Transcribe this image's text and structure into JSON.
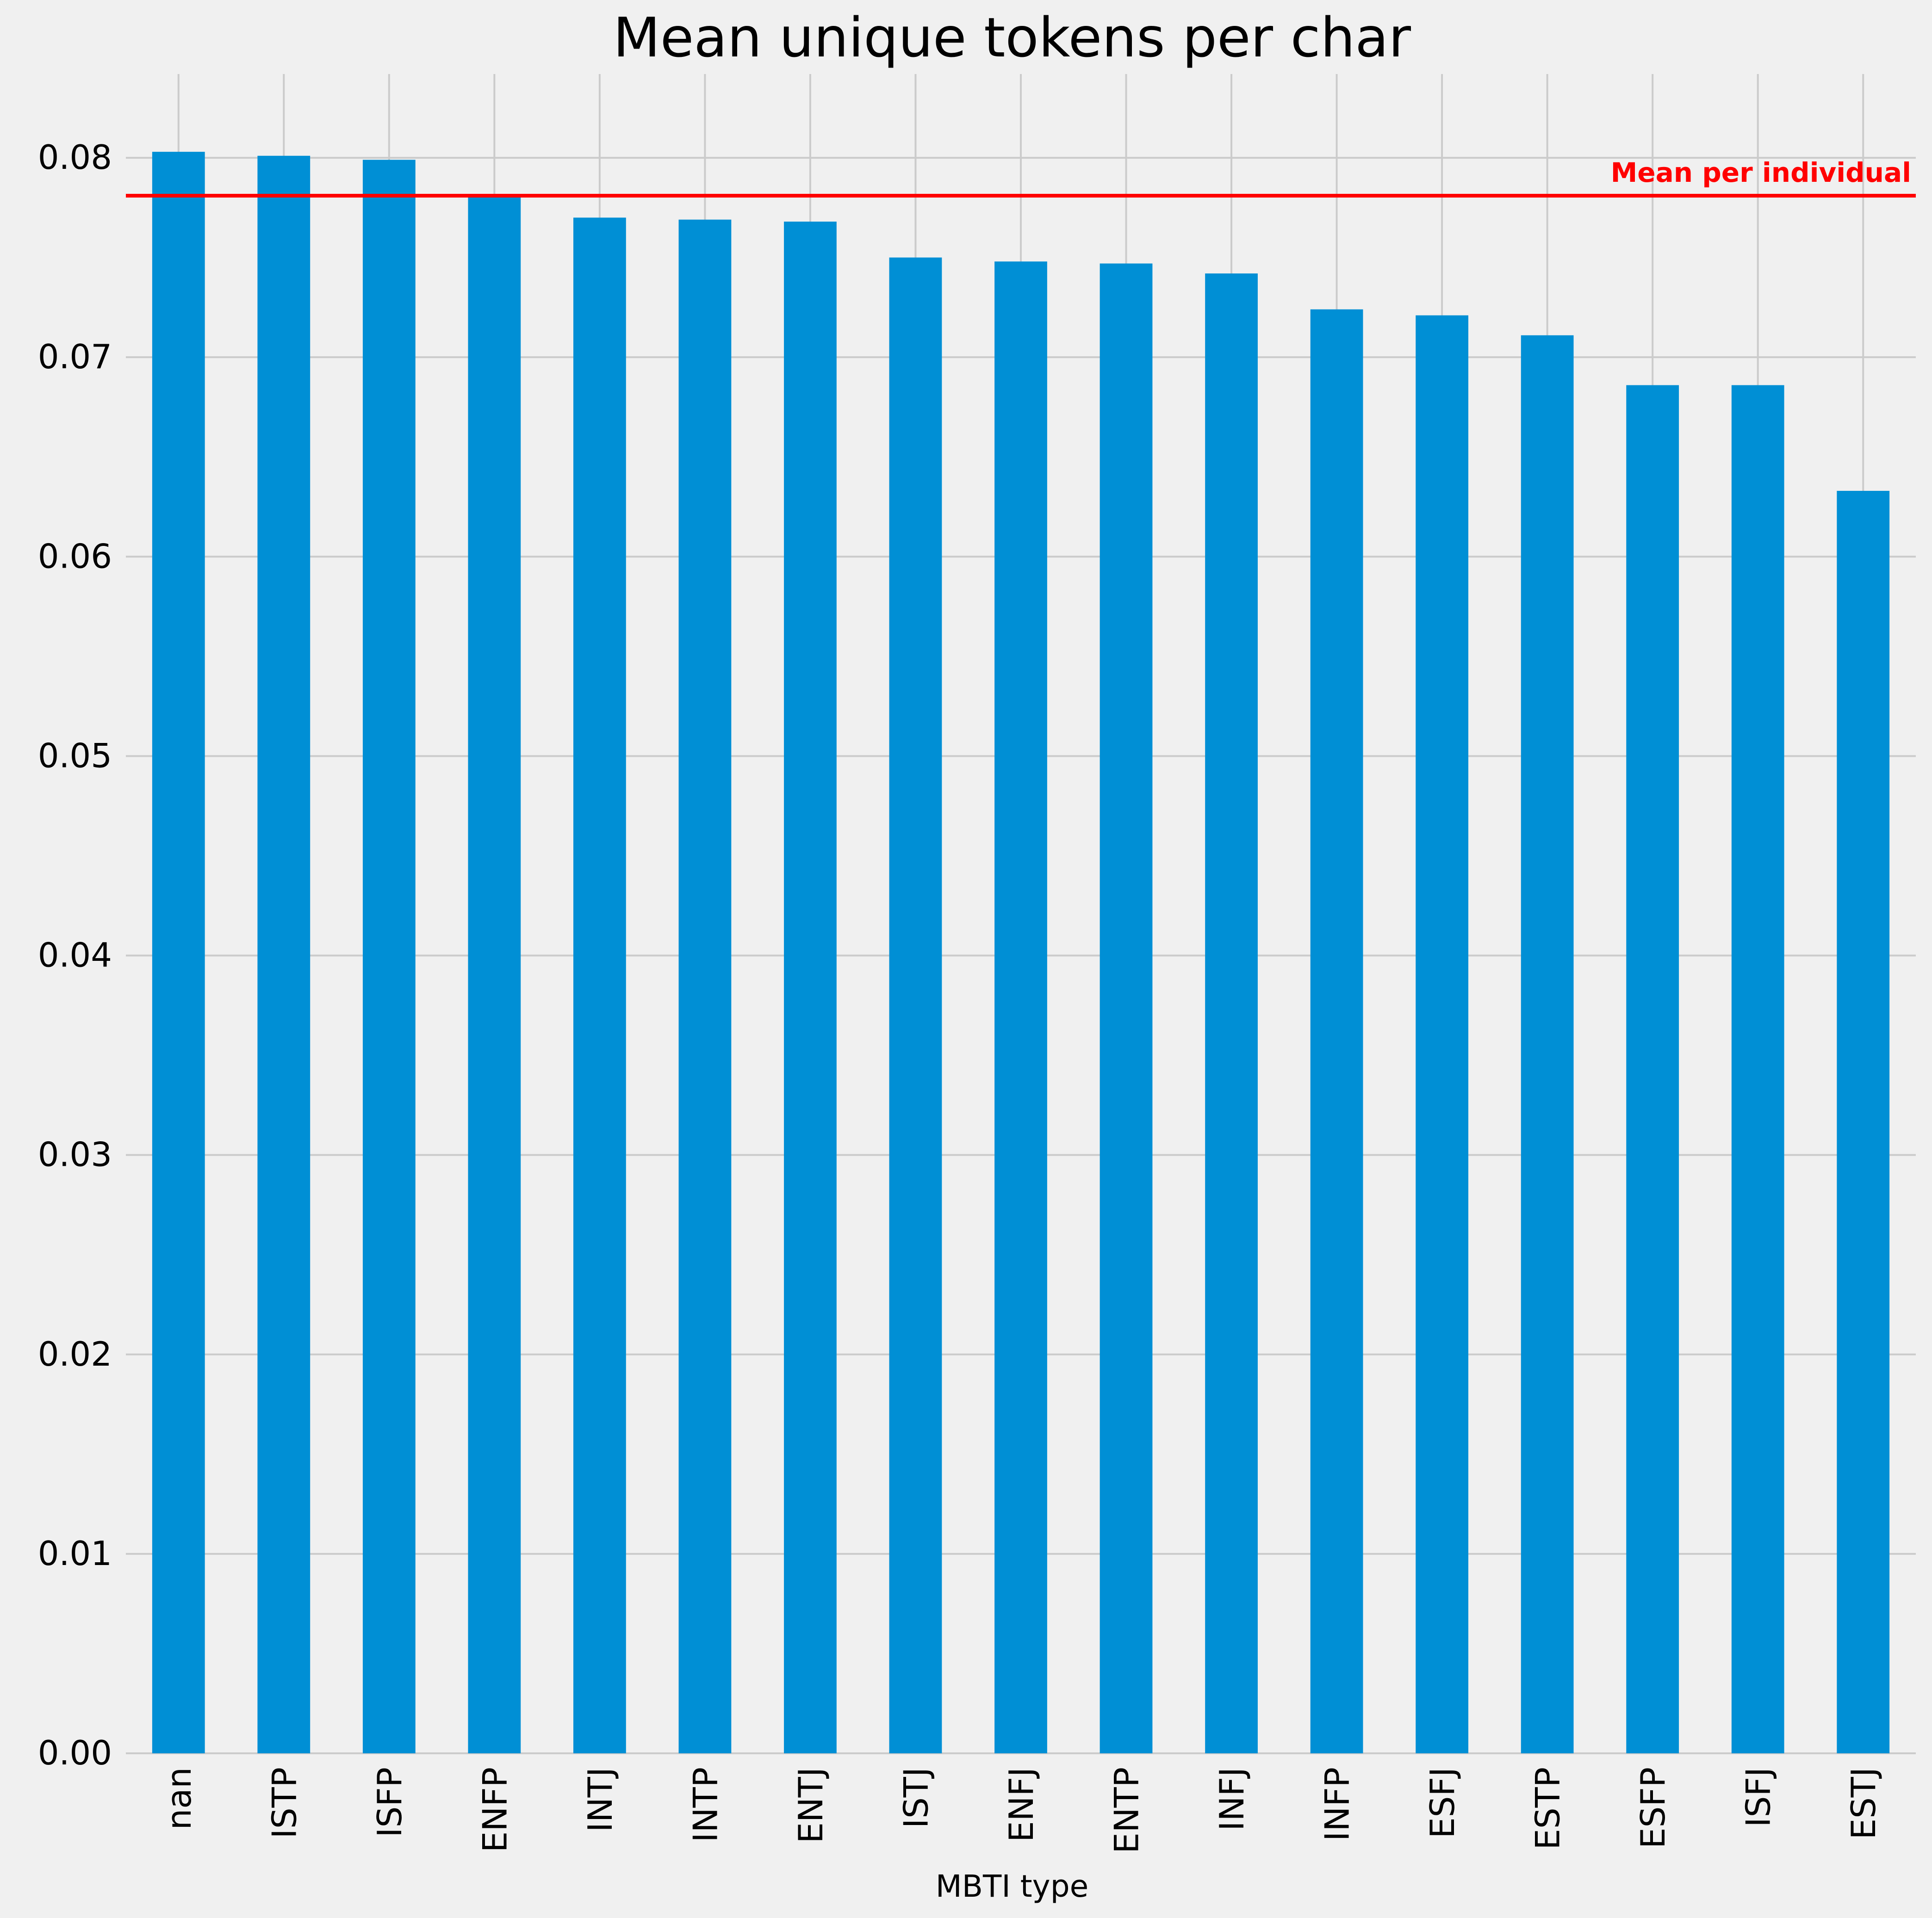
{
  "chart_data": {
    "type": "bar",
    "title": "Mean unique tokens per char",
    "xlabel": "MBTI type",
    "ylabel": "",
    "categories": [
      "nan",
      "ISTP",
      "ISFP",
      "ENFP",
      "INTJ",
      "INTP",
      "ENTJ",
      "ISTJ",
      "ENFJ",
      "ENTP",
      "INFJ",
      "INFP",
      "ESFJ",
      "ESTP",
      "ESFP",
      "ISFJ",
      "ESTJ"
    ],
    "values": [
      0.0803,
      0.0801,
      0.0799,
      0.0781,
      0.077,
      0.0769,
      0.0768,
      0.075,
      0.0748,
      0.0747,
      0.0742,
      0.0724,
      0.0721,
      0.0711,
      0.0686,
      0.0686,
      0.0633
    ],
    "ylim": [
      0,
      0.0842
    ],
    "yticks": [
      "0.00",
      "0.01",
      "0.02",
      "0.03",
      "0.04",
      "0.05",
      "0.06",
      "0.07",
      "0.08"
    ],
    "ytick_values": [
      0,
      0.01,
      0.02,
      0.03,
      0.04,
      0.05,
      0.06,
      0.07,
      0.08
    ],
    "grid": true,
    "bar_color": "#008fd5",
    "reference_line": {
      "value": 0.0781,
      "label": "Mean per individual",
      "color": "#ff0000"
    }
  }
}
